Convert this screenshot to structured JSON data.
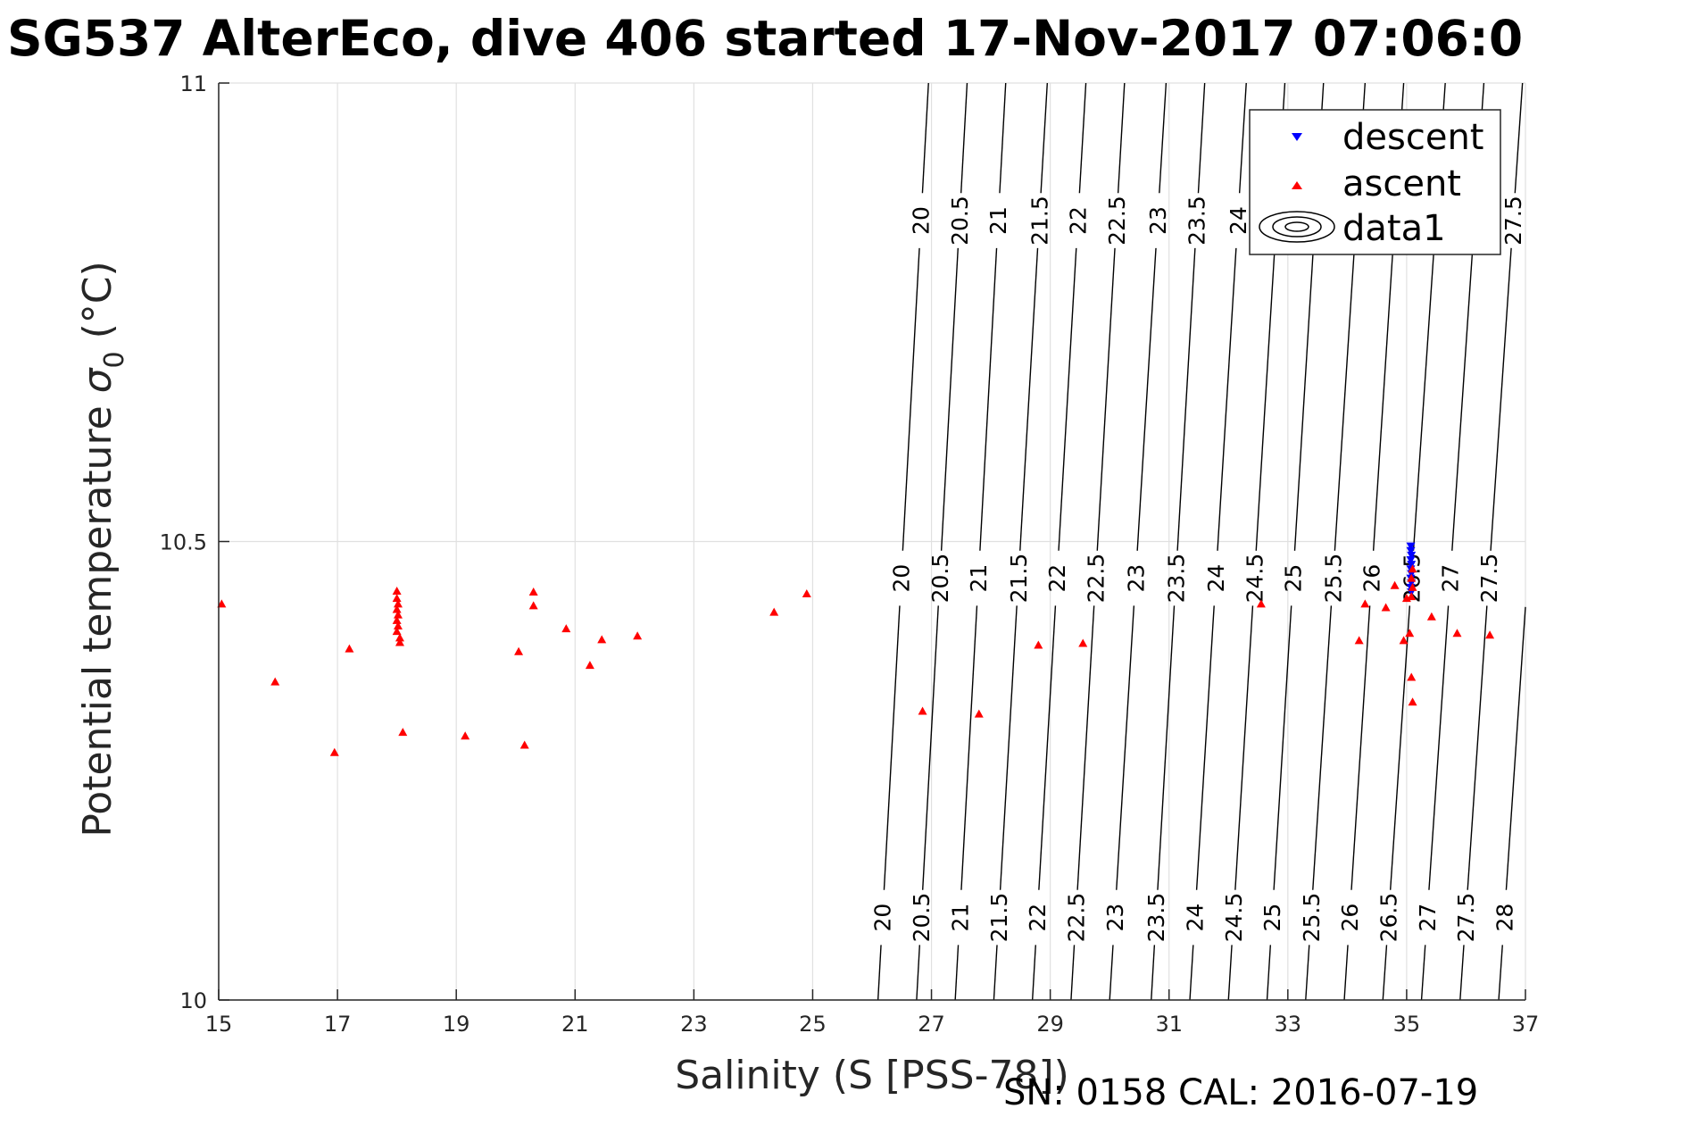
{
  "chart_data": {
    "type": "scatter",
    "title": "SG537 AlterEco, dive 406 started 17-Nov-2017 07:06:0",
    "xlabel": "Salinity (S [PSS-78])",
    "ylabel_main": "Potential temperature ",
    "ylabel_sym": "σ",
    "ylabel_sub": "0",
    "ylabel_unit": " (°C)",
    "xlim": [
      15,
      37
    ],
    "ylim": [
      10,
      11
    ],
    "x_ticks": [
      15,
      17,
      19,
      21,
      23,
      25,
      27,
      29,
      31,
      33,
      35,
      37
    ],
    "y_ticks": [
      10,
      10.5,
      11
    ],
    "y_tick_labels": [
      "10",
      "10.5",
      "11"
    ],
    "grid": true,
    "legend_position": "top-right",
    "legend": [
      "descent",
      "ascent",
      "data1"
    ],
    "footer": "SN: 0158  CAL: 2016-07-19",
    "colors": {
      "descent": "#0000ff",
      "ascent": "#ff0000",
      "contour": "#000000",
      "grid": "#e0e0e0"
    },
    "series": [
      {
        "name": "descent",
        "marker": "triangle-down",
        "points": [
          [
            35.07,
            10.495
          ],
          [
            35.07,
            10.49
          ],
          [
            35.08,
            10.485
          ],
          [
            35.07,
            10.48
          ],
          [
            35.08,
            10.475
          ],
          [
            35.07,
            10.47
          ],
          [
            35.08,
            10.465
          ],
          [
            35.07,
            10.46
          ],
          [
            35.08,
            10.455
          ],
          [
            35.07,
            10.45
          ],
          [
            35.08,
            10.445
          ]
        ]
      },
      {
        "name": "ascent",
        "marker": "triangle-up",
        "points": [
          [
            15.05,
            10.432
          ],
          [
            15.95,
            10.347
          ],
          [
            16.95,
            10.27
          ],
          [
            17.2,
            10.383
          ],
          [
            18.0,
            10.446
          ],
          [
            18.0,
            10.438
          ],
          [
            18.02,
            10.432
          ],
          [
            18.0,
            10.426
          ],
          [
            18.02,
            10.42
          ],
          [
            18.0,
            10.414
          ],
          [
            18.02,
            10.408
          ],
          [
            18.0,
            10.402
          ],
          [
            18.05,
            10.395
          ],
          [
            18.05,
            10.39
          ],
          [
            18.1,
            10.292
          ],
          [
            19.15,
            10.288
          ],
          [
            20.05,
            10.38
          ],
          [
            20.15,
            10.278
          ],
          [
            20.3,
            10.445
          ],
          [
            20.3,
            10.43
          ],
          [
            20.85,
            10.405
          ],
          [
            21.25,
            10.365
          ],
          [
            21.45,
            10.393
          ],
          [
            22.05,
            10.397
          ],
          [
            24.35,
            10.423
          ],
          [
            24.9,
            10.443
          ],
          [
            26.85,
            10.315
          ],
          [
            27.8,
            10.312
          ],
          [
            28.8,
            10.387
          ],
          [
            29.55,
            10.389
          ],
          [
            32.55,
            10.432
          ],
          [
            34.2,
            10.392
          ],
          [
            34.3,
            10.432
          ],
          [
            34.65,
            10.428
          ],
          [
            34.8,
            10.452
          ],
          [
            34.95,
            10.392
          ],
          [
            35.0,
            10.438
          ],
          [
            35.05,
            10.4
          ],
          [
            35.08,
            10.352
          ],
          [
            35.1,
            10.325
          ],
          [
            35.1,
            10.47
          ],
          [
            35.08,
            10.46
          ],
          [
            35.1,
            10.45
          ],
          [
            35.08,
            10.44
          ],
          [
            35.42,
            10.418
          ],
          [
            35.85,
            10.4
          ],
          [
            36.4,
            10.398
          ]
        ]
      }
    ],
    "contours": {
      "levels": [
        20,
        20.5,
        21,
        21.5,
        22,
        22.5,
        23,
        23.5,
        24,
        24.5,
        25,
        25.5,
        26,
        26.5,
        27,
        27.5,
        28
      ],
      "s_at_t10": [
        26.1,
        26.75,
        27.4,
        28.05,
        28.7,
        29.35,
        30.0,
        30.7,
        31.35,
        32.0,
        32.65,
        33.3,
        33.95,
        34.6,
        35.25,
        35.9,
        36.55
      ],
      "s_at_t11": [
        26.95,
        27.6,
        28.25,
        28.95,
        29.6,
        30.25,
        30.95,
        31.6,
        32.3,
        32.95,
        33.6,
        34.3,
        34.95,
        35.65,
        36.3,
        36.95,
        37.6
      ],
      "label_t": [
        10.09,
        10.46,
        10.85
      ]
    }
  }
}
